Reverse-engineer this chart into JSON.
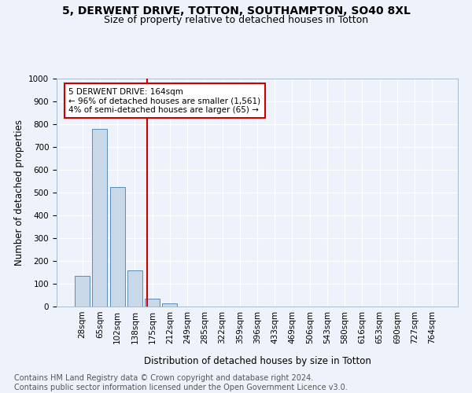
{
  "title": "5, DERWENT DRIVE, TOTTON, SOUTHAMPTON, SO40 8XL",
  "subtitle": "Size of property relative to detached houses in Totton",
  "xlabel": "Distribution of detached houses by size in Totton",
  "ylabel": "Number of detached properties",
  "bar_labels": [
    "28sqm",
    "65sqm",
    "102sqm",
    "138sqm",
    "175sqm",
    "212sqm",
    "249sqm",
    "285sqm",
    "322sqm",
    "359sqm",
    "396sqm",
    "433sqm",
    "469sqm",
    "506sqm",
    "543sqm",
    "580sqm",
    "616sqm",
    "653sqm",
    "690sqm",
    "727sqm",
    "764sqm"
  ],
  "bar_values": [
    133,
    778,
    524,
    157,
    35,
    13,
    0,
    0,
    0,
    0,
    0,
    0,
    0,
    0,
    0,
    0,
    0,
    0,
    0,
    0,
    0
  ],
  "bar_color": "#c8d8e8",
  "bar_edge_color": "#5b8db8",
  "vline_color": "#cc0000",
  "annotation_text": "5 DERWENT DRIVE: 164sqm\n← 96% of detached houses are smaller (1,561)\n4% of semi-detached houses are larger (65) →",
  "annotation_box_color": "#cc0000",
  "ylim": [
    0,
    1000
  ],
  "yticks": [
    0,
    100,
    200,
    300,
    400,
    500,
    600,
    700,
    800,
    900,
    1000
  ],
  "footnote": "Contains HM Land Registry data © Crown copyright and database right 2024.\nContains public sector information licensed under the Open Government Licence v3.0.",
  "bg_color": "#eef2fa",
  "plot_bg_color": "#eef2fa",
  "grid_color": "#ffffff",
  "title_fontsize": 10,
  "subtitle_fontsize": 9,
  "axis_label_fontsize": 8.5,
  "tick_fontsize": 7.5,
  "footnote_fontsize": 7,
  "vline_pos": 3.72
}
